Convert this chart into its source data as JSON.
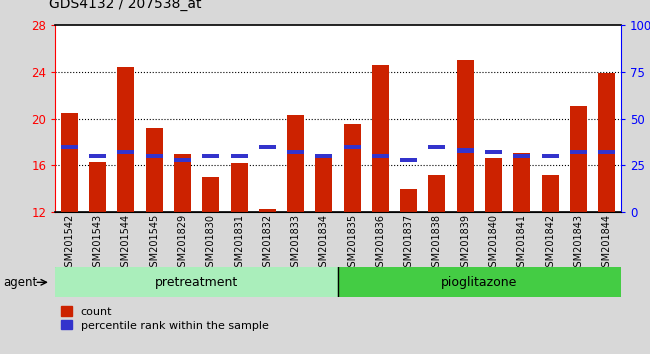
{
  "title": "GDS4132 / 207538_at",
  "samples": [
    "GSM201542",
    "GSM201543",
    "GSM201544",
    "GSM201545",
    "GSM201829",
    "GSM201830",
    "GSM201831",
    "GSM201832",
    "GSM201833",
    "GSM201834",
    "GSM201835",
    "GSM201836",
    "GSM201837",
    "GSM201838",
    "GSM201839",
    "GSM201840",
    "GSM201841",
    "GSM201842",
    "GSM201843",
    "GSM201844"
  ],
  "count_values": [
    20.5,
    16.3,
    24.4,
    19.2,
    17.0,
    15.0,
    16.2,
    12.3,
    20.3,
    17.0,
    19.5,
    24.6,
    14.0,
    15.2,
    25.0,
    16.6,
    17.1,
    15.2,
    21.1,
    23.9
  ],
  "percentile_values": [
    35,
    30,
    32,
    30,
    28,
    30,
    30,
    35,
    32,
    30,
    35,
    30,
    28,
    35,
    33,
    32,
    30,
    30,
    32,
    32
  ],
  "y_min": 12,
  "y_max": 28,
  "yticks_left": [
    12,
    16,
    20,
    24,
    28
  ],
  "yticks_right": [
    0,
    25,
    50,
    75,
    100
  ],
  "bar_color": "#cc2200",
  "percentile_color": "#3333cc",
  "n_pretreatment": 10,
  "n_pioglitazone": 10,
  "pretreatment_color": "#aaeebb",
  "pioglitazone_color": "#44cc44",
  "group_label_pretreatment": "pretreatment",
  "group_label_pioglitazone": "pioglitazone",
  "agent_label": "agent",
  "legend_count": "count",
  "legend_percentile": "percentile rank within the sample",
  "fig_bg_color": "#d8d8d8",
  "plot_bg_color": "#ffffff",
  "title_fontsize": 10,
  "tick_label_fontsize": 7,
  "bar_width": 0.6
}
